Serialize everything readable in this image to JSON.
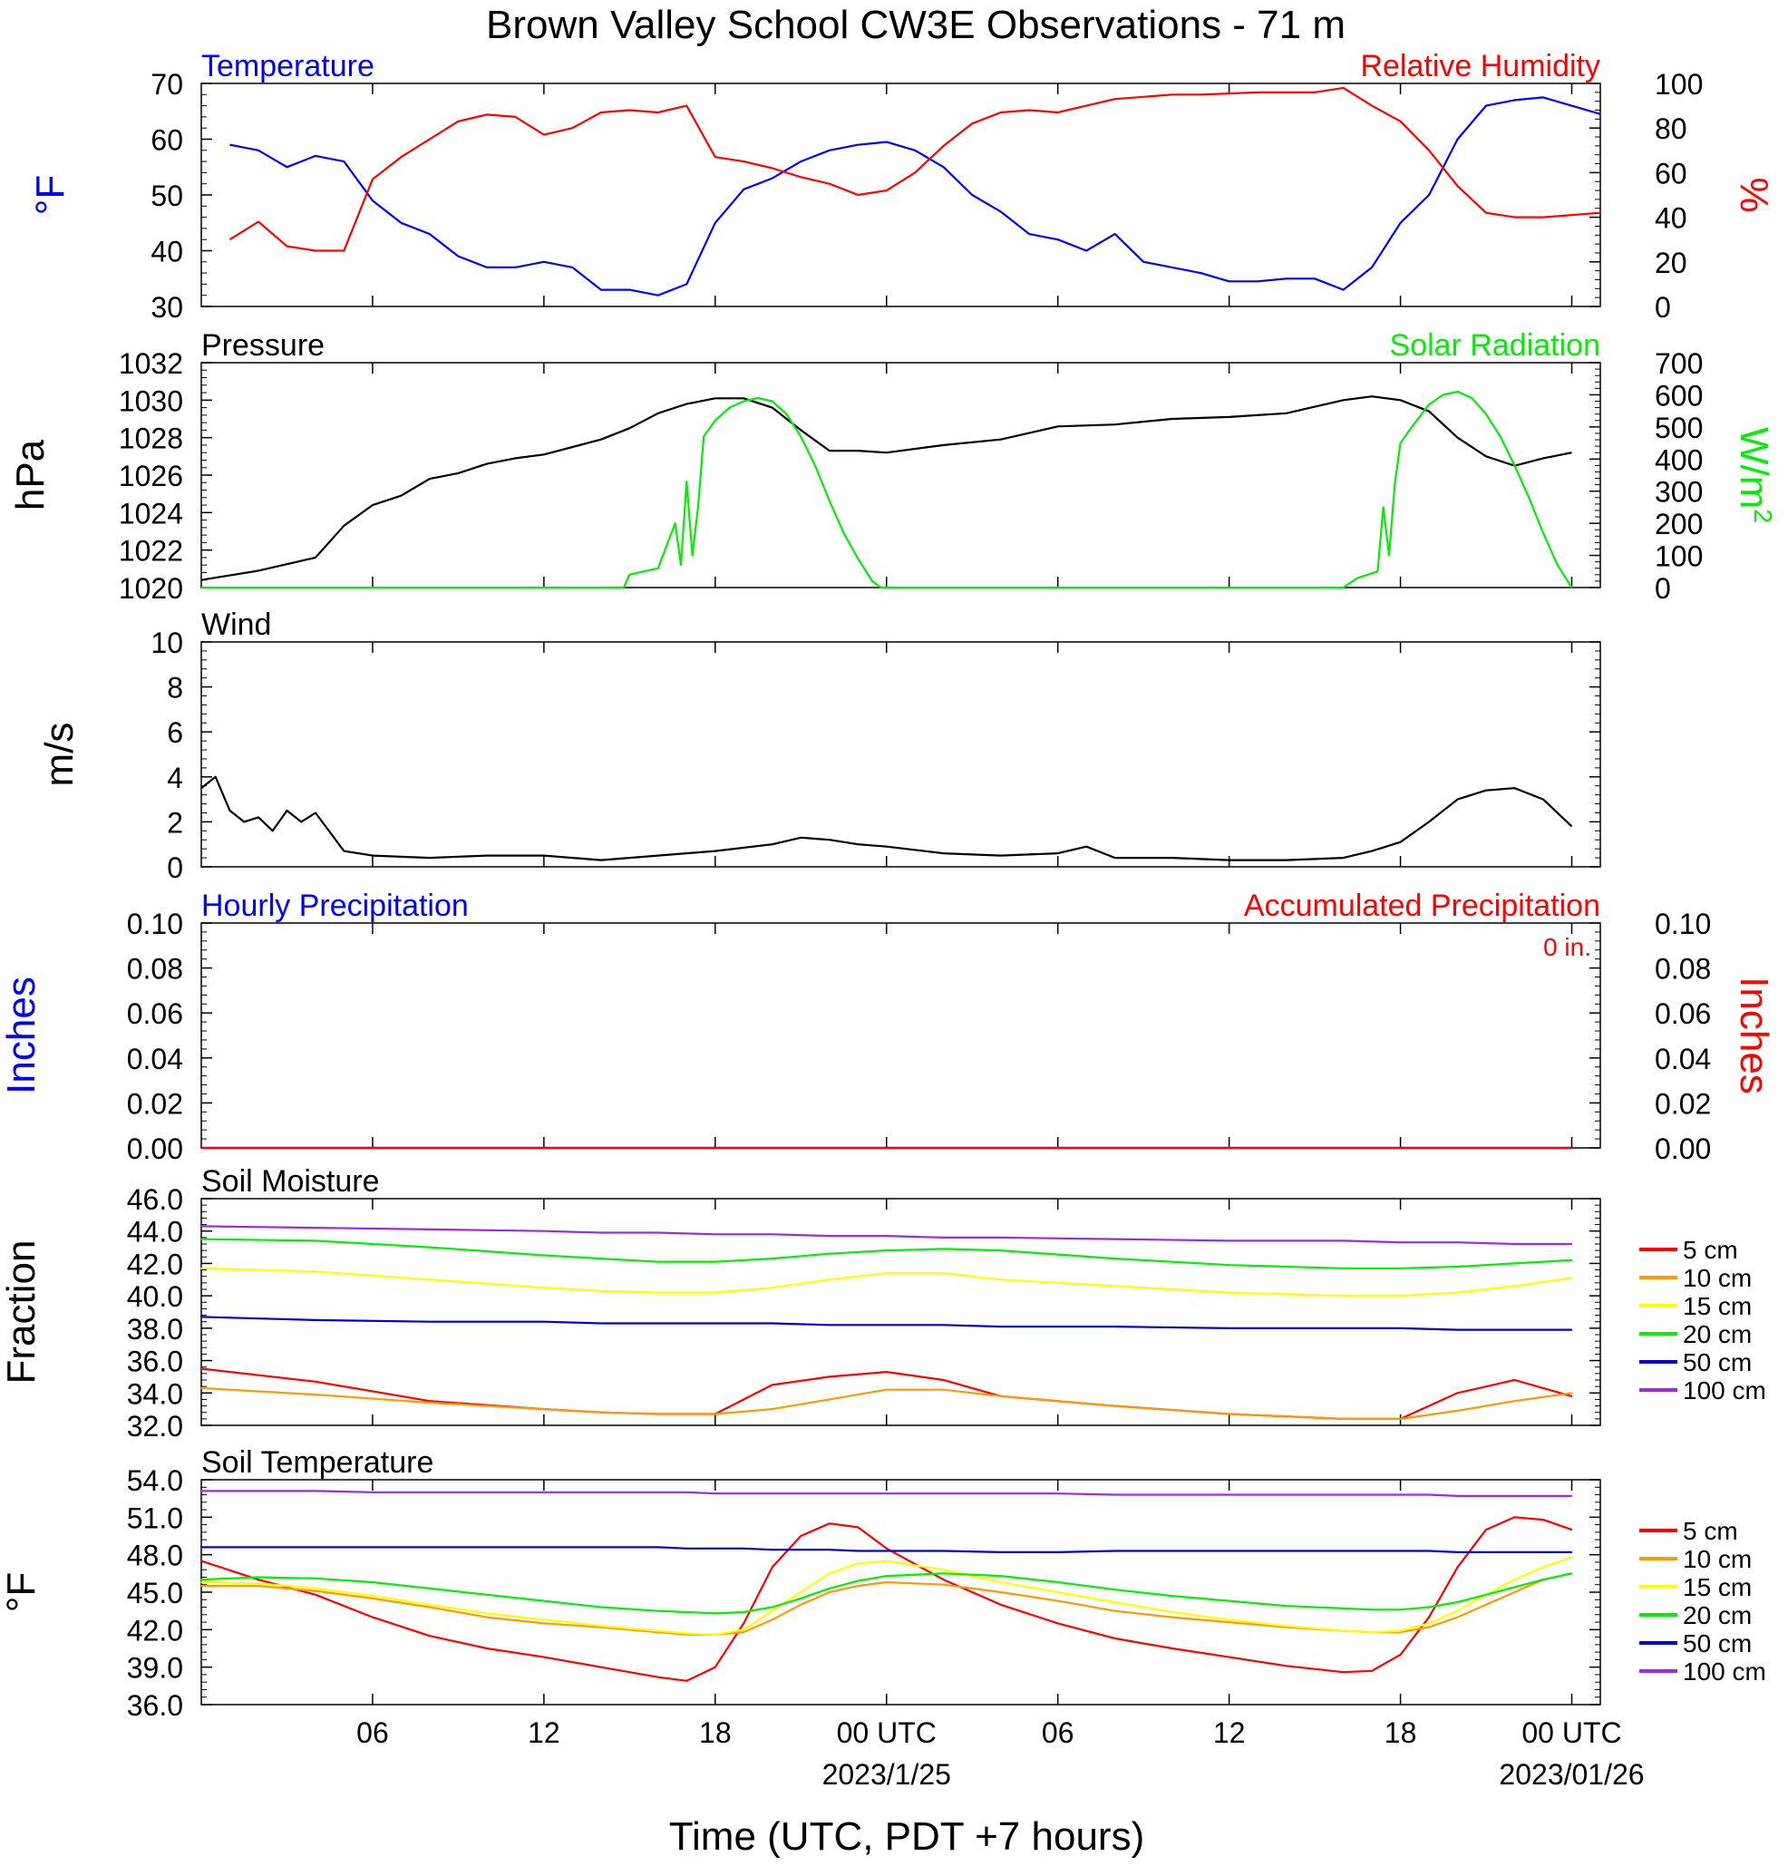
{
  "title": "Brown Valley School CW3E Observations - 71 m",
  "xlabel": "Time (UTC, PDT +7 hours)",
  "x_ticks": [
    "06",
    "12",
    "18",
    "00 UTC",
    "06",
    "12",
    "18",
    "00 UTC"
  ],
  "x_tick_hours": [
    6,
    12,
    18,
    24,
    30,
    36,
    42,
    48
  ],
  "date_labels": [
    {
      "hour": 24,
      "text": "2023/1/25"
    },
    {
      "hour": 48,
      "text": "2023/01/26"
    }
  ],
  "colors": {
    "blue": "#0000ff",
    "red": "#ff0000",
    "green": "#00ee00",
    "black": "#000000",
    "orange": "#ff9900",
    "yellow": "#ffff00",
    "purple": "#9a2be2"
  },
  "chart_data": [
    {
      "type": "line",
      "panel": "temperature_rh",
      "title_left": "Temperature",
      "title_right": "Relative Humidity",
      "ylabel_left": "°F",
      "ylabel_right": "%",
      "ylim_left": [
        30,
        70
      ],
      "ylim_right": [
        0,
        100
      ],
      "yticks_left": [
        "30",
        "40",
        "50",
        "60",
        "70"
      ],
      "yticks_right": [
        "0",
        "20",
        "40",
        "60",
        "80",
        "100"
      ],
      "x_hours": [
        1,
        2,
        3,
        4,
        5,
        6,
        7,
        8,
        9,
        10,
        11,
        12,
        13,
        14,
        15,
        16,
        17,
        18,
        19,
        20,
        21,
        22,
        23,
        24,
        25,
        26,
        27,
        28,
        29,
        30,
        31,
        32,
        33,
        34,
        35,
        36,
        37,
        38,
        39,
        40,
        41,
        42,
        43,
        44,
        45,
        46,
        47,
        49
      ],
      "series": [
        {
          "name": "Temperature",
          "axis": "left",
          "color": "#0000ff",
          "values": [
            59,
            58,
            55,
            57,
            56,
            49,
            45,
            43,
            39,
            37,
            37,
            38,
            37,
            33,
            33,
            32,
            34,
            45,
            51,
            53,
            56,
            58,
            59,
            59.5,
            58,
            55,
            50,
            47,
            43,
            42,
            40,
            43,
            38,
            37,
            36,
            34.5,
            34.5,
            35,
            35,
            33,
            37,
            45,
            50,
            60,
            66,
            67,
            67.5,
            64.5
          ]
        },
        {
          "name": "Relative Humidity",
          "axis": "right",
          "color": "#ff0000",
          "values": [
            30,
            38,
            27,
            25,
            25,
            57,
            67,
            75,
            83,
            86,
            85,
            77,
            80,
            87,
            88,
            87,
            90,
            67,
            65,
            62,
            58,
            55,
            50,
            52,
            60,
            72,
            82,
            87,
            88,
            87,
            90,
            93,
            94,
            95,
            95,
            95.5,
            96,
            96,
            96,
            98,
            90,
            83,
            70,
            54,
            42,
            40,
            40,
            42
          ]
        }
      ]
    },
    {
      "type": "line",
      "panel": "pressure_solar",
      "title_left": "Pressure",
      "title_right": "Solar Radiation",
      "ylabel_left": "hPa",
      "ylabel_right": "W/m",
      "ylabel_right_sup": "2",
      "ylim_left": [
        1020,
        1032
      ],
      "ylim_right": [
        0,
        700
      ],
      "yticks_left": [
        "1020",
        "1022",
        "1024",
        "1026",
        "1028",
        "1030",
        "1032"
      ],
      "yticks_right": [
        "0",
        "100",
        "200",
        "300",
        "400",
        "500",
        "600",
        "700"
      ],
      "series": [
        {
          "name": "Pressure",
          "axis": "left",
          "color": "#000000",
          "x": [
            0,
            2,
            4,
            5,
            6,
            7,
            8,
            9,
            10,
            11,
            12,
            13,
            14,
            15,
            16,
            17,
            18,
            19,
            20,
            21,
            22,
            23,
            24,
            26,
            28,
            30,
            32,
            34,
            36,
            38,
            40,
            41,
            42,
            43,
            44,
            45,
            46,
            47,
            48
          ],
          "values": [
            1020.4,
            1020.9,
            1021.6,
            1023.3,
            1024.4,
            1024.9,
            1025.8,
            1026.1,
            1026.6,
            1026.9,
            1027.1,
            1027.5,
            1027.9,
            1028.5,
            1029.3,
            1029.8,
            1030.1,
            1030.1,
            1029.6,
            1028.4,
            1027.3,
            1027.3,
            1027.2,
            1027.6,
            1027.9,
            1028.6,
            1028.7,
            1029.0,
            1029.1,
            1029.3,
            1030.0,
            1030.2,
            1030.0,
            1029.4,
            1028.0,
            1027.0,
            1026.5,
            1026.9,
            1027.2
          ]
        },
        {
          "name": "Solar Radiation",
          "axis": "right",
          "color": "#00ee00",
          "x": [
            0,
            14.8,
            15.0,
            16.0,
            16.6,
            16.8,
            17.0,
            17.2,
            17.4,
            17.6,
            18.0,
            18.5,
            19.0,
            19.5,
            20.0,
            20.5,
            21.0,
            21.5,
            22.0,
            22.5,
            23.0,
            23.5,
            23.8,
            24.0,
            40.0,
            40.5,
            41.2,
            41.4,
            41.6,
            41.8,
            42.0,
            42.4,
            43.0,
            43.5,
            44.0,
            44.5,
            45.0,
            45.5,
            46.0,
            46.5,
            47.0,
            47.5,
            48.0
          ],
          "values": [
            0,
            0,
            40,
            60,
            200,
            70,
            330,
            100,
            250,
            470,
            520,
            560,
            580,
            590,
            580,
            540,
            470,
            380,
            270,
            170,
            90,
            20,
            0,
            0,
            0,
            30,
            50,
            250,
            100,
            320,
            450,
            500,
            570,
            600,
            610,
            590,
            540,
            470,
            380,
            280,
            170,
            70,
            0
          ]
        }
      ]
    },
    {
      "type": "line",
      "panel": "wind",
      "title_left": "Wind",
      "ylabel_left": "m/s",
      "ylim_left": [
        0,
        10
      ],
      "yticks_left": [
        "0",
        "2",
        "4",
        "6",
        "8",
        "10"
      ],
      "series": [
        {
          "name": "Wind",
          "axis": "left",
          "color": "#000000",
          "x": [
            0,
            0.5,
            1,
            1.5,
            2,
            2.5,
            3,
            3.5,
            4,
            5,
            6,
            8,
            10,
            12,
            14,
            16,
            18,
            20,
            21,
            22,
            23,
            24,
            26,
            28,
            30,
            31,
            32,
            34,
            36,
            38,
            40,
            41,
            42,
            43,
            44,
            45,
            46,
            47,
            48
          ],
          "values": [
            3.5,
            4.0,
            2.5,
            2.0,
            2.2,
            1.6,
            2.5,
            2.0,
            2.4,
            0.7,
            0.5,
            0.4,
            0.5,
            0.5,
            0.3,
            0.5,
            0.7,
            1.0,
            1.3,
            1.2,
            1.0,
            0.9,
            0.6,
            0.5,
            0.6,
            0.9,
            0.4,
            0.4,
            0.3,
            0.3,
            0.4,
            0.7,
            1.1,
            2.0,
            3.0,
            3.4,
            3.5,
            3.0,
            1.8
          ]
        }
      ]
    },
    {
      "type": "line",
      "panel": "precipitation",
      "title_left": "Hourly Precipitation",
      "title_right": "Accumulated Precipitation",
      "annotation": "0 in.",
      "ylabel_left": "Inches",
      "ylabel_right": "Inches",
      "ylim_left": [
        0,
        0.1
      ],
      "ylim_right": [
        0,
        0.1
      ],
      "yticks_left": [
        "0.00",
        "0.02",
        "0.04",
        "0.06",
        "0.08",
        "0.10"
      ],
      "yticks_right": [
        "0.00",
        "0.02",
        "0.04",
        "0.06",
        "0.08",
        "0.10"
      ],
      "series": [
        {
          "name": "Hourly Precipitation",
          "axis": "left",
          "color": "#0000ff",
          "x": [
            0,
            48
          ],
          "values": [
            0,
            0
          ]
        },
        {
          "name": "Accumulated Precipitation",
          "axis": "right",
          "color": "#ff0000",
          "x": [
            0,
            48
          ],
          "values": [
            0,
            0
          ]
        }
      ]
    },
    {
      "type": "line",
      "panel": "soil_moisture",
      "title_left": "Soil Moisture",
      "ylabel_left": "Fraction",
      "ylim_left": [
        32,
        46
      ],
      "yticks_left": [
        "32.0",
        "34.0",
        "36.0",
        "38.0",
        "40.0",
        "42.0",
        "44.0",
        "46.0"
      ],
      "x": [
        0,
        4,
        8,
        12,
        14,
        16,
        18,
        20,
        22,
        24,
        26,
        28,
        32,
        36,
        40,
        42,
        44,
        46,
        48
      ],
      "series": [
        {
          "name": "5 cm",
          "color": "#ff0000",
          "values": [
            35.5,
            34.7,
            33.5,
            33.0,
            32.8,
            32.7,
            32.7,
            34.5,
            35.0,
            35.3,
            34.8,
            33.8,
            33.2,
            32.7,
            32.4,
            32.4,
            34.0,
            34.8,
            33.8
          ]
        },
        {
          "name": "10 cm",
          "color": "#ff9900",
          "values": [
            34.3,
            33.9,
            33.4,
            33.0,
            32.8,
            32.7,
            32.7,
            33.0,
            33.6,
            34.2,
            34.2,
            33.8,
            33.2,
            32.7,
            32.4,
            32.4,
            32.9,
            33.5,
            34.0
          ]
        },
        {
          "name": "15 cm",
          "color": "#ffff00",
          "values": [
            41.7,
            41.5,
            41.0,
            40.5,
            40.3,
            40.2,
            40.2,
            40.5,
            41.0,
            41.4,
            41.4,
            41.0,
            40.6,
            40.2,
            40.0,
            40.0,
            40.2,
            40.6,
            41.1
          ]
        },
        {
          "name": "20 cm",
          "color": "#00ee00",
          "values": [
            43.5,
            43.4,
            43.0,
            42.5,
            42.3,
            42.1,
            42.1,
            42.3,
            42.6,
            42.8,
            42.9,
            42.8,
            42.3,
            41.9,
            41.7,
            41.7,
            41.8,
            42.0,
            42.2
          ]
        },
        {
          "name": "50 cm",
          "color": "#0000cc",
          "values": [
            38.7,
            38.5,
            38.4,
            38.4,
            38.3,
            38.3,
            38.3,
            38.3,
            38.2,
            38.2,
            38.2,
            38.1,
            38.1,
            38.0,
            38.0,
            38.0,
            37.9,
            37.9,
            37.9
          ]
        },
        {
          "name": "100 cm",
          "color": "#9a2be2",
          "values": [
            44.3,
            44.2,
            44.1,
            44.0,
            43.9,
            43.9,
            43.8,
            43.8,
            43.7,
            43.7,
            43.6,
            43.6,
            43.5,
            43.4,
            43.4,
            43.3,
            43.3,
            43.2,
            43.2
          ]
        }
      ]
    },
    {
      "type": "line",
      "panel": "soil_temperature",
      "title_left": "Soil Temperature",
      "ylabel_left": "°F",
      "ylim_left": [
        36,
        54
      ],
      "yticks_left": [
        "36.0",
        "39.0",
        "42.0",
        "45.0",
        "48.0",
        "51.0",
        "54.0"
      ],
      "x": [
        0,
        2,
        4,
        6,
        8,
        10,
        12,
        14,
        16,
        17,
        18,
        19,
        20,
        21,
        22,
        23,
        24,
        26,
        28,
        30,
        32,
        34,
        36,
        38,
        40,
        41,
        42,
        43,
        44,
        45,
        46,
        47,
        48
      ],
      "series": [
        {
          "name": "5 cm",
          "color": "#ff0000",
          "values": [
            47.5,
            46.0,
            44.8,
            43.0,
            41.5,
            40.5,
            39.8,
            39.0,
            38.2,
            37.9,
            39.0,
            42.5,
            47.0,
            49.5,
            50.5,
            50.2,
            48.5,
            46.0,
            44.0,
            42.5,
            41.3,
            40.5,
            39.8,
            39.1,
            38.6,
            38.7,
            40.0,
            43.0,
            47.0,
            50.0,
            51.0,
            50.8,
            50.0
          ]
        },
        {
          "name": "10 cm",
          "color": "#ff9900",
          "values": [
            45.5,
            45.5,
            45.1,
            44.5,
            43.8,
            43.0,
            42.5,
            42.2,
            41.8,
            41.6,
            41.6,
            41.8,
            42.8,
            44.0,
            45.0,
            45.5,
            45.8,
            45.6,
            45.0,
            44.3,
            43.5,
            43.0,
            42.6,
            42.2,
            41.9,
            41.8,
            41.8,
            42.2,
            43.0,
            44.0,
            45.0,
            46.0,
            46.5
          ]
        },
        {
          "name": "15 cm",
          "color": "#ffff00",
          "values": [
            45.8,
            45.7,
            45.3,
            44.7,
            44.0,
            43.3,
            42.8,
            42.3,
            41.9,
            41.7,
            41.6,
            42.0,
            43.5,
            45.0,
            46.5,
            47.3,
            47.5,
            46.8,
            45.8,
            45.0,
            44.2,
            43.4,
            42.8,
            42.3,
            41.9,
            41.8,
            41.9,
            42.5,
            43.5,
            44.8,
            46.0,
            47.0,
            47.8
          ]
        },
        {
          "name": "20 cm",
          "color": "#00ee00",
          "values": [
            46.0,
            46.2,
            46.1,
            45.8,
            45.3,
            44.8,
            44.3,
            43.8,
            43.5,
            43.4,
            43.3,
            43.4,
            43.8,
            44.5,
            45.3,
            45.9,
            46.3,
            46.5,
            46.3,
            45.8,
            45.2,
            44.7,
            44.3,
            43.9,
            43.7,
            43.6,
            43.6,
            43.8,
            44.2,
            44.8,
            45.4,
            46.0,
            46.5
          ]
        },
        {
          "name": "50 cm",
          "color": "#0000cc",
          "values": [
            48.6,
            48.6,
            48.6,
            48.6,
            48.6,
            48.6,
            48.6,
            48.6,
            48.6,
            48.5,
            48.5,
            48.5,
            48.4,
            48.4,
            48.4,
            48.3,
            48.3,
            48.3,
            48.2,
            48.2,
            48.3,
            48.3,
            48.3,
            48.3,
            48.3,
            48.3,
            48.3,
            48.3,
            48.2,
            48.2,
            48.2,
            48.2,
            48.2
          ]
        },
        {
          "name": "100 cm",
          "color": "#9a2be2",
          "values": [
            53.1,
            53.1,
            53.1,
            53.0,
            53.0,
            53.0,
            53.0,
            53.0,
            53.0,
            53.0,
            52.9,
            52.9,
            52.9,
            52.9,
            52.9,
            52.9,
            52.9,
            52.9,
            52.9,
            52.9,
            52.8,
            52.8,
            52.8,
            52.8,
            52.8,
            52.8,
            52.8,
            52.8,
            52.7,
            52.7,
            52.7,
            52.7,
            52.7
          ]
        }
      ]
    }
  ]
}
